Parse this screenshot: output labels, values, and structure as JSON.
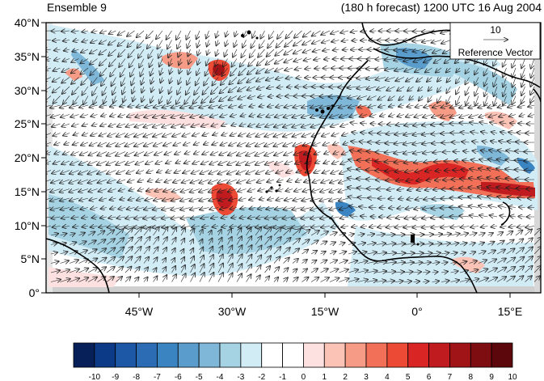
{
  "header": {
    "left_title": "Ensemble 9",
    "right_title": "(180 h forecast) 1200 UTC 16 Aug 2004"
  },
  "map": {
    "lat_labels": [
      "40°N",
      "35°N",
      "30°N",
      "25°N",
      "20°N",
      "15°N",
      "10°N",
      "5°N",
      "0°"
    ],
    "lon_labels": [
      "45°W",
      "30°W",
      "15°W",
      "0°",
      "15°E"
    ],
    "reference_vector": {
      "magnitude": "10",
      "label": "Reference Vector"
    }
  },
  "colorbar": {
    "tick_labels": [
      "-10",
      "-9",
      "-8",
      "-7",
      "-6",
      "-5",
      "-4",
      "-3",
      "-2",
      "-1",
      "0",
      "1",
      "2",
      "3",
      "4",
      "5",
      "6",
      "7",
      "8",
      "9",
      "10"
    ],
    "colors": [
      "#08205a",
      "#0c3a86",
      "#1c58a6",
      "#2b6cb4",
      "#3a84c2",
      "#5a9dcc",
      "#7fb7d8",
      "#a6d3e4",
      "#d2ecf6",
      "#ffffff",
      "#ffffff",
      "#fde0e0",
      "#fbc2b6",
      "#f69b86",
      "#f27058",
      "#ec4a35",
      "#d92523",
      "#c01b1f",
      "#a01418",
      "#7e0d12",
      "#5c070b"
    ]
  }
}
